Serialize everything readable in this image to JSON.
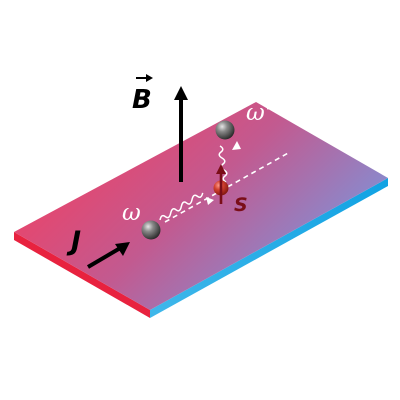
{
  "labels": {
    "magnetic_field": "B",
    "current": "J",
    "incoming_frequency": "ω",
    "scattered_frequency": "ω'",
    "spin": "S"
  },
  "colors": {
    "slab_warm": "#e94a6f",
    "slab_cool": "#7f92d8",
    "edge_red": "#e8223f",
    "edge_blue": "#1aa8e6",
    "spin_arrow": "#7a0e18",
    "spin_label": "#7a0e18",
    "ink": "#000000",
    "text_light": "#ffffff"
  },
  "icons": {
    "particle": "sphere-icon",
    "spin_particle": "red-sphere-icon"
  }
}
